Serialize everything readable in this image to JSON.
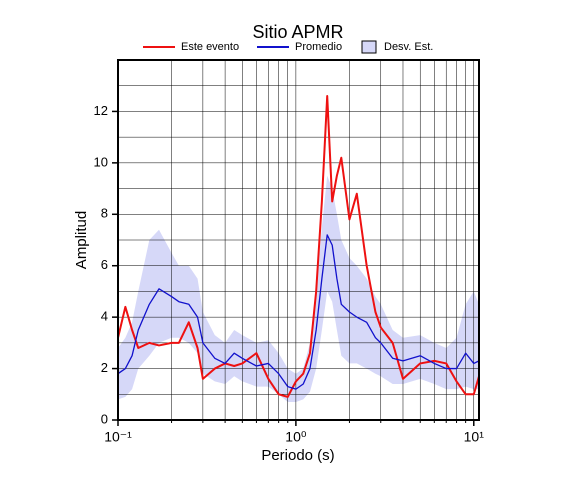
{
  "chart_data": {
    "type": "line",
    "title": "Sitio APMR",
    "xlabel": "Periodo (s)",
    "ylabel": "Amplitud",
    "xscale": "log",
    "grid": true,
    "xlim": [
      0.1,
      10.7
    ],
    "ylim": [
      0,
      14
    ],
    "xticks": [
      {
        "value": 0.1,
        "label": "10⁻¹"
      },
      {
        "value": 1,
        "label": "10⁰"
      },
      {
        "value": 10,
        "label": "10¹"
      }
    ],
    "xminorticks": [
      0.2,
      0.3,
      0.4,
      0.5,
      0.6,
      0.7,
      0.8,
      0.9,
      2,
      3,
      4,
      5,
      6,
      7,
      8,
      9
    ],
    "yticks": [
      0,
      2,
      4,
      6,
      8,
      10,
      12
    ],
    "yminorticks": [
      1,
      3,
      5,
      7,
      9,
      11,
      13
    ],
    "x": [
      0.1,
      0.11,
      0.12,
      0.13,
      0.15,
      0.17,
      0.2,
      0.22,
      0.25,
      0.28,
      0.3,
      0.35,
      0.4,
      0.45,
      0.5,
      0.6,
      0.7,
      0.8,
      0.9,
      1.0,
      1.1,
      1.2,
      1.3,
      1.4,
      1.5,
      1.6,
      1.7,
      1.8,
      2.0,
      2.2,
      2.5,
      2.8,
      3.0,
      3.5,
      4,
      5,
      6,
      7,
      8,
      9,
      10,
      10.7
    ],
    "band": {
      "name": "Desv. Est.",
      "color": "#d6d8f8",
      "upper": [
        2.8,
        3.2,
        3.8,
        5.0,
        7.0,
        7.4,
        6.5,
        6.0,
        6.0,
        5.5,
        4.2,
        3.3,
        3.0,
        3.5,
        3.3,
        3.0,
        3.1,
        2.6,
        2.0,
        1.8,
        2.0,
        3.0,
        5.0,
        7.5,
        9.5,
        9.0,
        8.0,
        7.0,
        6.3,
        6.0,
        5.5,
        4.8,
        4.5,
        3.5,
        3.2,
        3.3,
        3.0,
        2.8,
        3.2,
        4.5,
        5.0,
        4.5
      ],
      "lower": [
        0.8,
        0.9,
        1.2,
        2.0,
        2.5,
        3.0,
        3.2,
        3.2,
        3.0,
        2.6,
        1.8,
        1.5,
        1.4,
        1.7,
        1.5,
        1.3,
        1.3,
        1.0,
        0.7,
        0.7,
        0.8,
        1.1,
        2.0,
        3.5,
        5.0,
        4.6,
        3.5,
        2.5,
        2.2,
        2.2,
        2.0,
        1.8,
        1.7,
        1.4,
        1.4,
        1.6,
        1.4,
        1.2,
        1.2,
        1.3,
        1.2,
        1.2
      ]
    },
    "series": [
      {
        "name": "Este evento",
        "color": "#ee1111",
        "values": [
          3.2,
          4.4,
          3.5,
          2.8,
          3.0,
          2.9,
          3.0,
          3.0,
          3.8,
          2.8,
          1.6,
          2.0,
          2.2,
          2.1,
          2.2,
          2.6,
          1.6,
          1.0,
          0.9,
          1.5,
          1.8,
          2.6,
          5.0,
          8.5,
          12.6,
          8.5,
          9.5,
          10.2,
          7.8,
          8.8,
          6.0,
          4.2,
          3.6,
          3.0,
          1.6,
          2.2,
          2.3,
          2.2,
          1.5,
          1.0,
          1.0,
          1.7
        ]
      },
      {
        "name": "Promedio",
        "color": "#1111cc",
        "values": [
          1.8,
          2.0,
          2.5,
          3.5,
          4.5,
          5.1,
          4.8,
          4.6,
          4.5,
          4.0,
          3.0,
          2.4,
          2.2,
          2.6,
          2.4,
          2.1,
          2.2,
          1.8,
          1.3,
          1.2,
          1.4,
          2.0,
          3.5,
          5.5,
          7.2,
          6.8,
          5.5,
          4.5,
          4.2,
          4.0,
          3.8,
          3.2,
          3.0,
          2.4,
          2.3,
          2.5,
          2.2,
          2.0,
          2.0,
          2.6,
          2.2,
          2.3
        ]
      }
    ]
  }
}
